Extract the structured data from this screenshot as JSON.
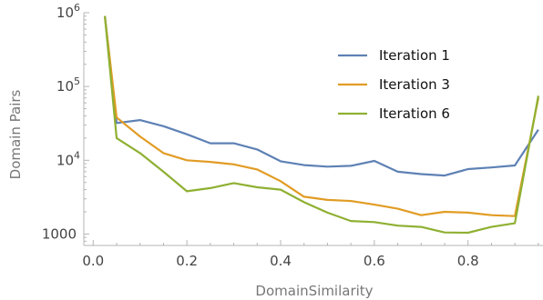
{
  "chart_data": {
    "type": "line",
    "xlabel": "DomainSimilarity",
    "ylabel": "Domain Pairs",
    "xlim": [
      -0.02,
      0.96
    ],
    "ylim": [
      700,
      1000000
    ],
    "y_scale": "log",
    "grid": false,
    "legend_position": "top-right",
    "x_ticks": [
      {
        "value": 0.0,
        "label": "0.0"
      },
      {
        "value": 0.2,
        "label": "0.2"
      },
      {
        "value": 0.4,
        "label": "0.4"
      },
      {
        "value": 0.6,
        "label": "0.6"
      },
      {
        "value": 0.8,
        "label": "0.8"
      }
    ],
    "y_ticks": [
      {
        "value": 1000,
        "label": "1000"
      },
      {
        "value": 10000,
        "label": "10",
        "exp": "4"
      },
      {
        "value": 100000,
        "label": "10",
        "exp": "5"
      },
      {
        "value": 1000000,
        "label": "10",
        "exp": "6"
      }
    ],
    "series": [
      {
        "name": "Iteration 1",
        "color": "#5e81b5",
        "points": [
          [
            0.025,
            900000
          ],
          [
            0.05,
            32000
          ],
          [
            0.1,
            35000
          ],
          [
            0.15,
            29000
          ],
          [
            0.2,
            22500
          ],
          [
            0.25,
            17000
          ],
          [
            0.3,
            17000
          ],
          [
            0.35,
            14000
          ],
          [
            0.4,
            9700
          ],
          [
            0.45,
            8600
          ],
          [
            0.5,
            8200
          ],
          [
            0.55,
            8400
          ],
          [
            0.6,
            9800
          ],
          [
            0.65,
            7000
          ],
          [
            0.7,
            6500
          ],
          [
            0.75,
            6200
          ],
          [
            0.8,
            7600
          ],
          [
            0.85,
            8000
          ],
          [
            0.9,
            8500
          ],
          [
            0.95,
            26000
          ]
        ]
      },
      {
        "name": "Iteration 3",
        "color": "#e19c24",
        "points": [
          [
            0.025,
            900000
          ],
          [
            0.05,
            38000
          ],
          [
            0.1,
            21000
          ],
          [
            0.15,
            12500
          ],
          [
            0.2,
            10000
          ],
          [
            0.25,
            9500
          ],
          [
            0.3,
            8800
          ],
          [
            0.35,
            7500
          ],
          [
            0.4,
            5200
          ],
          [
            0.45,
            3200
          ],
          [
            0.5,
            2900
          ],
          [
            0.55,
            2800
          ],
          [
            0.6,
            2500
          ],
          [
            0.65,
            2200
          ],
          [
            0.7,
            1800
          ],
          [
            0.75,
            2000
          ],
          [
            0.8,
            1950
          ],
          [
            0.85,
            1800
          ],
          [
            0.9,
            1750
          ],
          [
            0.95,
            70000
          ]
        ]
      },
      {
        "name": "Iteration 6",
        "color": "#8fb032",
        "points": [
          [
            0.025,
            900000
          ],
          [
            0.05,
            20000
          ],
          [
            0.1,
            12500
          ],
          [
            0.15,
            7000
          ],
          [
            0.2,
            3800
          ],
          [
            0.25,
            4200
          ],
          [
            0.3,
            4900
          ],
          [
            0.35,
            4300
          ],
          [
            0.4,
            4000
          ],
          [
            0.45,
            2700
          ],
          [
            0.5,
            1950
          ],
          [
            0.55,
            1500
          ],
          [
            0.6,
            1450
          ],
          [
            0.65,
            1300
          ],
          [
            0.7,
            1250
          ],
          [
            0.75,
            1050
          ],
          [
            0.8,
            1040
          ],
          [
            0.85,
            1250
          ],
          [
            0.9,
            1400
          ],
          [
            0.95,
            75000
          ]
        ]
      }
    ]
  }
}
